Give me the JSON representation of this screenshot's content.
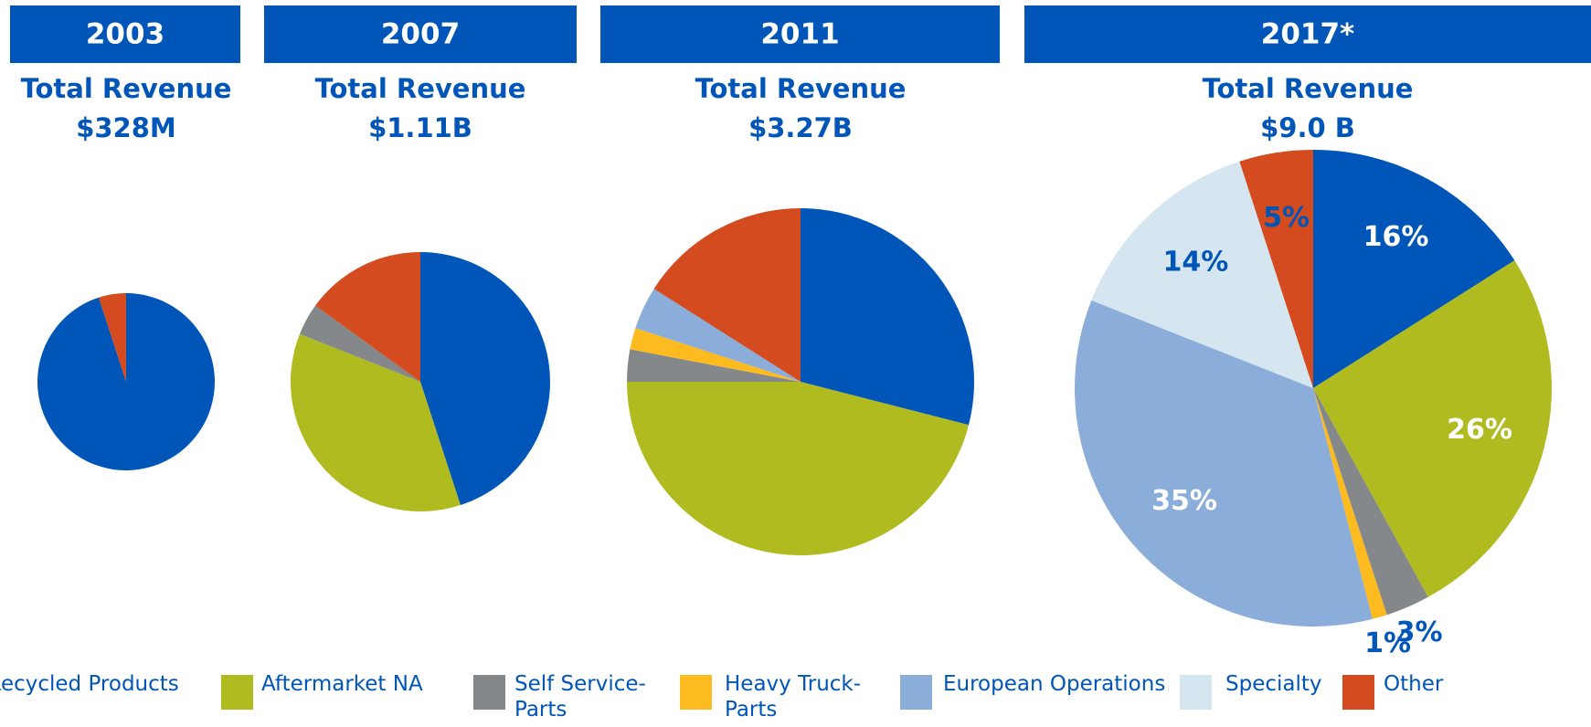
{
  "legend": {
    "categories": [
      "Recycled Products",
      "Aftermarket NA",
      "Self Service-Parts",
      "Heavy Truck-Parts",
      "European Operations",
      "Specialty",
      "Other"
    ],
    "colors": [
      "#0055b8",
      "#afbb1e",
      "#85888b",
      "#fdbb1f",
      "#8badd9",
      "#d6e6f0",
      "#d34b1f"
    ]
  },
  "chart_data": [
    {
      "type": "pie",
      "title": "2003",
      "subtitle": [
        "Total Revenue",
        "$328M"
      ],
      "values": [
        95,
        0,
        0,
        0,
        0,
        0,
        5
      ]
    },
    {
      "type": "pie",
      "title": "2007",
      "subtitle": [
        "Total Revenue",
        "$1.11B"
      ],
      "values": [
        45,
        36,
        4,
        0,
        0,
        0,
        15
      ]
    },
    {
      "type": "pie",
      "title": "2011",
      "subtitle": [
        "Total Revenue",
        "$3.27B"
      ],
      "values": [
        29,
        46,
        3,
        2,
        4,
        0,
        16
      ]
    },
    {
      "type": "pie",
      "title": "2017*",
      "subtitle": [
        "Total Revenue",
        "$9.0 B"
      ],
      "values": [
        16,
        26,
        3,
        1,
        35,
        14,
        5
      ],
      "value_labels": [
        "16%",
        "26%",
        "3%",
        "1%",
        "35%",
        "14%",
        "5%"
      ]
    }
  ]
}
